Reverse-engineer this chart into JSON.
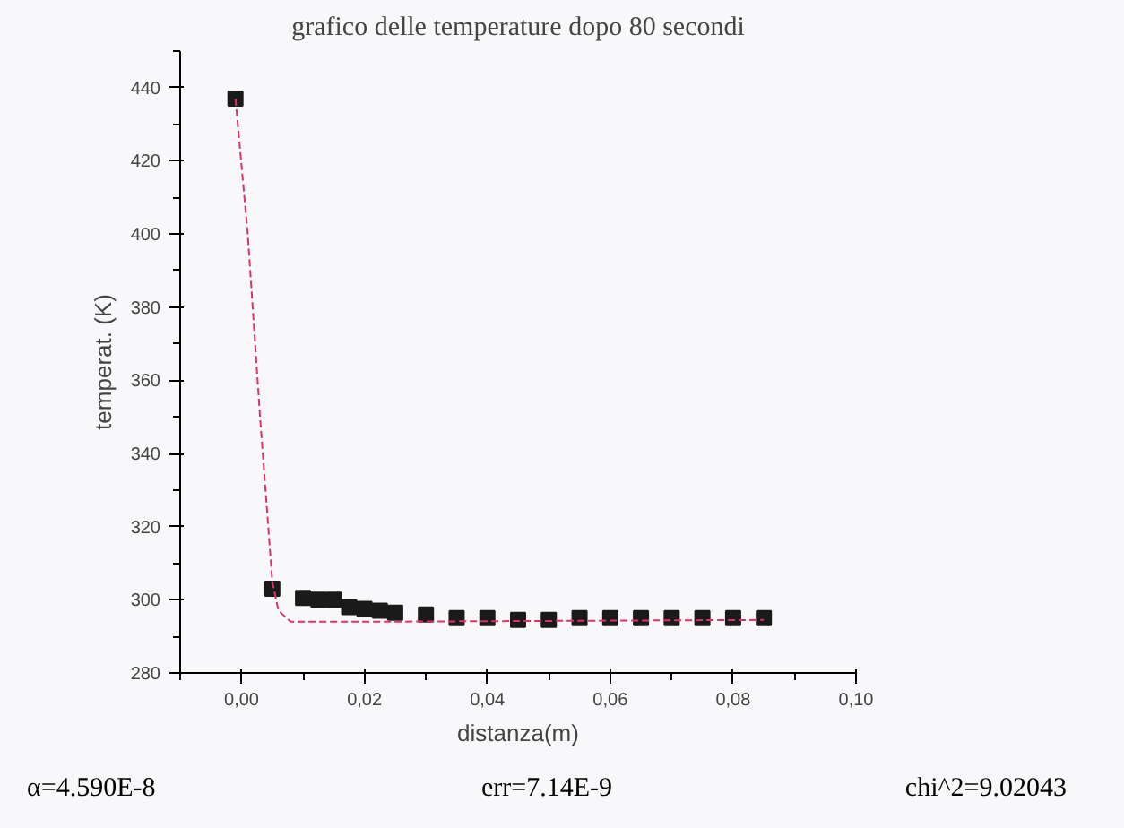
{
  "chart_data": {
    "type": "scatter",
    "title": "grafico delle temperature dopo 80 secondi",
    "xlabel": "distanza(m)",
    "ylabel": "temperat. (K)",
    "series": [
      {
        "color": "#1a1a1a",
        "marker": "square",
        "x": [
          -0.001,
          0.005,
          0.01,
          0.0125,
          0.015,
          0.0175,
          0.02,
          0.0225,
          0.025,
          0.03,
          0.035,
          0.04,
          0.045,
          0.05,
          0.055,
          0.06,
          0.065,
          0.07,
          0.075,
          0.08,
          0.085
        ],
        "values": [
          437,
          303,
          300.5,
          300,
          300,
          298,
          297.5,
          297,
          296.5,
          296,
          295,
          295,
          294.5,
          294.5,
          295,
          295,
          295,
          295,
          295,
          295,
          295
        ]
      },
      {
        "type": "line",
        "color": "#e0306a",
        "line_style": "dashed",
        "marker": "none",
        "x": [
          -0.001,
          0.001,
          0.003,
          0.005,
          0.006,
          0.008,
          0.02,
          0.085
        ],
        "values": [
          437,
          400,
          350,
          305,
          297,
          294,
          294,
          294.5
        ]
      }
    ],
    "xlim": [
      -0.01,
      0.1
    ],
    "xticks": [
      {
        "value": 0,
        "label": "0,00"
      },
      {
        "value": 0.02,
        "label": "0,02"
      },
      {
        "value": 0.04,
        "label": "0,04"
      },
      {
        "value": 0.06,
        "label": "0,06"
      },
      {
        "value": 0.08,
        "label": "0,08"
      },
      {
        "value": 0.1,
        "label": "0,10"
      }
    ],
    "ylim": [
      280,
      450
    ],
    "yticks": [
      280,
      300,
      320,
      340,
      360,
      380,
      400,
      420,
      440
    ],
    "grid": false,
    "annotations": [
      "α=4.590E-8",
      "err=7.14E-9",
      "chi^2=9.02043"
    ]
  }
}
